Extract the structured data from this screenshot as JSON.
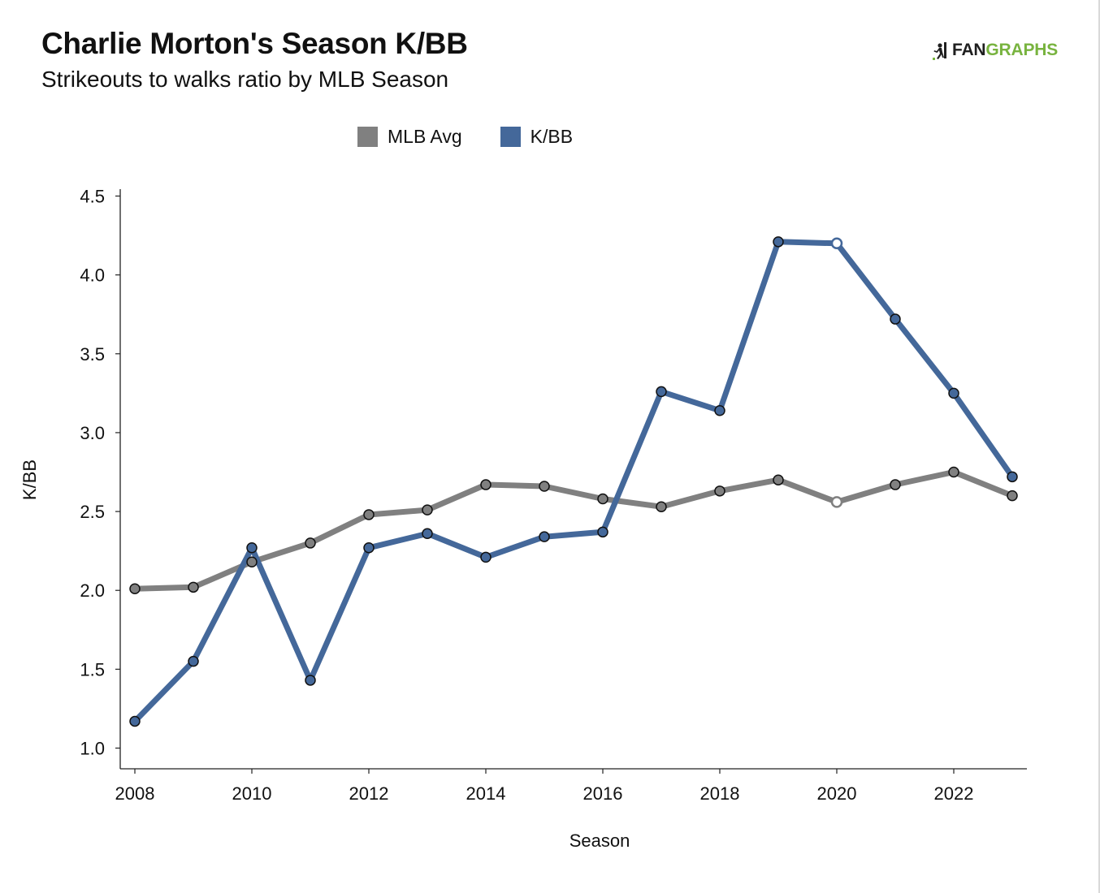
{
  "header": {
    "title": "Charlie Morton's Season K/BB",
    "subtitle": "Strikeouts to walks ratio by MLB Season"
  },
  "brand": {
    "icon": "runner-icon",
    "text_dark": "FAN",
    "text_green": "GRAPHS",
    "colors": {
      "dark": "#1f1f1f",
      "green": "#78b33f"
    }
  },
  "chart_data": {
    "type": "line",
    "title": "Charlie Morton's Season K/BB",
    "subtitle": "Strikeouts to walks ratio by MLB Season",
    "xlabel": "Season",
    "ylabel": "K/BB",
    "xlim": [
      2008,
      2023
    ],
    "ylim": [
      1.0,
      4.5
    ],
    "x_ticks": [
      "2008",
      "2010",
      "2012",
      "2014",
      "2016",
      "2018",
      "2020",
      "2022"
    ],
    "y_ticks": [
      "1.0",
      "1.5",
      "2.0",
      "2.5",
      "3.0",
      "3.5",
      "4.0",
      "4.5"
    ],
    "grid": false,
    "legend_position": "top-center",
    "hollow_marker_x": [
      2020
    ],
    "x": [
      2008,
      2009,
      2010,
      2011,
      2012,
      2013,
      2014,
      2015,
      2016,
      2017,
      2018,
      2019,
      2020,
      2021,
      2022,
      2023
    ],
    "series": [
      {
        "name": "MLB Avg",
        "color": "#808080",
        "values": [
          2.01,
          2.02,
          2.18,
          2.3,
          2.48,
          2.51,
          2.67,
          2.66,
          2.58,
          2.53,
          2.63,
          2.7,
          2.56,
          2.67,
          2.75,
          2.6
        ]
      },
      {
        "name": "K/BB",
        "color": "#44689a",
        "values": [
          1.17,
          1.55,
          2.27,
          1.43,
          2.27,
          2.36,
          2.21,
          2.34,
          2.37,
          3.26,
          3.14,
          4.21,
          4.2,
          3.72,
          3.25,
          2.72
        ]
      }
    ]
  }
}
